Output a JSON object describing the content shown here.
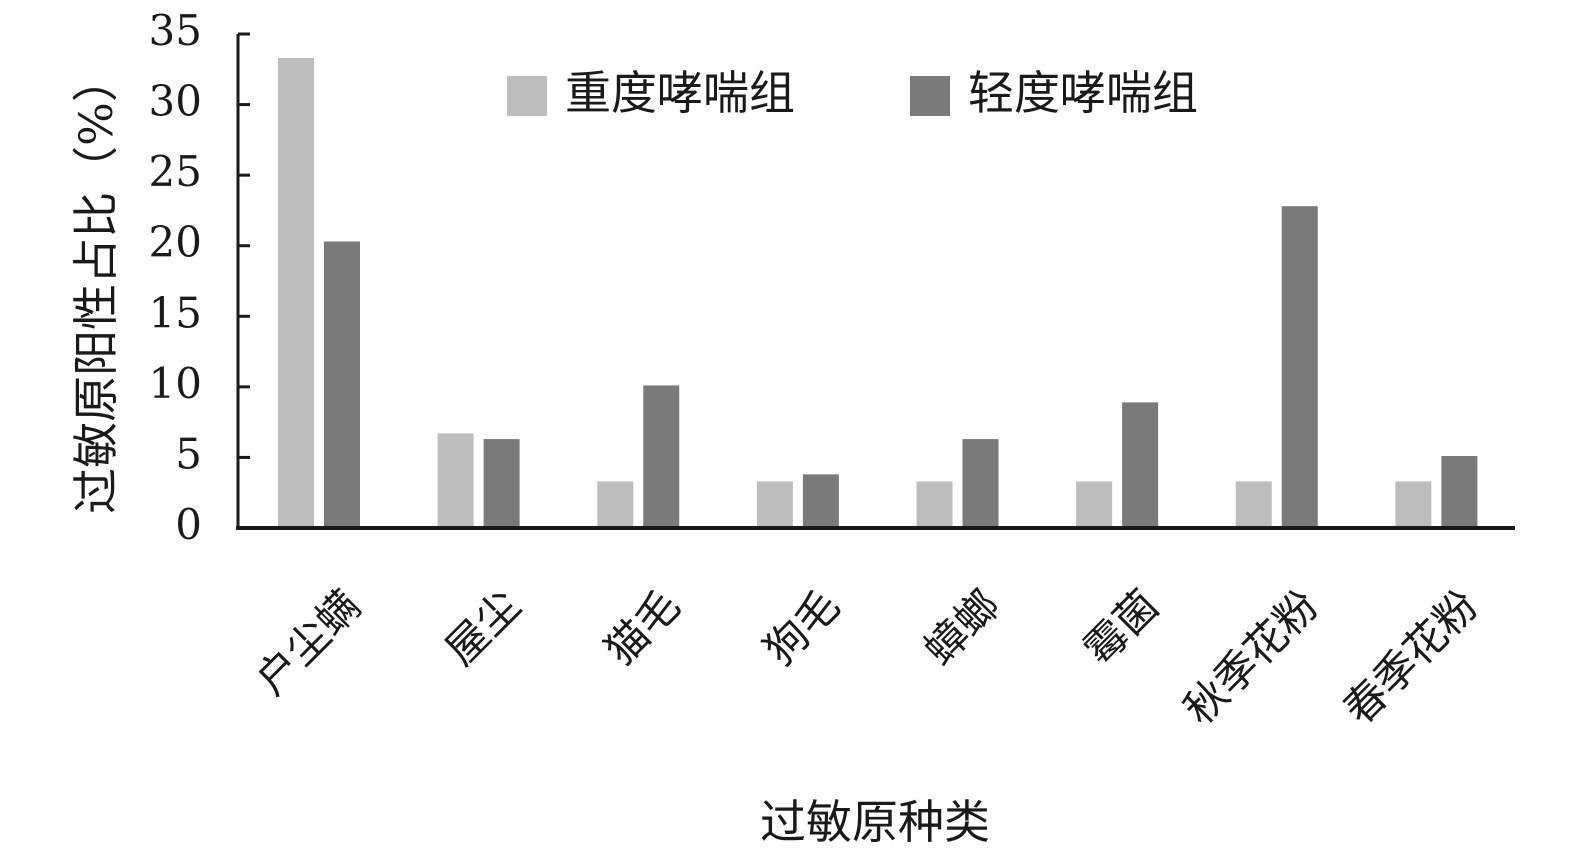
{
  "chart_data": {
    "type": "bar",
    "xlabel": "过敏原种类",
    "ylabel": "过敏原阳性占比（%）",
    "ylim": [
      0,
      35
    ],
    "yticks": [
      0,
      5,
      10,
      15,
      20,
      25,
      30,
      35
    ],
    "grid": false,
    "legend": "top",
    "categories": [
      "户尘螨",
      "屋尘",
      "猫毛",
      "狗毛",
      "蟑螂",
      "霉菌",
      "秋季花粉",
      "春季花粉"
    ],
    "series": [
      {
        "name": "重度哮喘组",
        "color": "#bdbdbd",
        "values": [
          33.3,
          6.7,
          3.3,
          3.3,
          3.3,
          3.3,
          3.3,
          3.3
        ]
      },
      {
        "name": "轻度哮喘组",
        "color": "#7a7a7a",
        "values": [
          20.3,
          6.3,
          10.1,
          3.8,
          6.3,
          8.9,
          22.8,
          5.1
        ]
      }
    ]
  }
}
